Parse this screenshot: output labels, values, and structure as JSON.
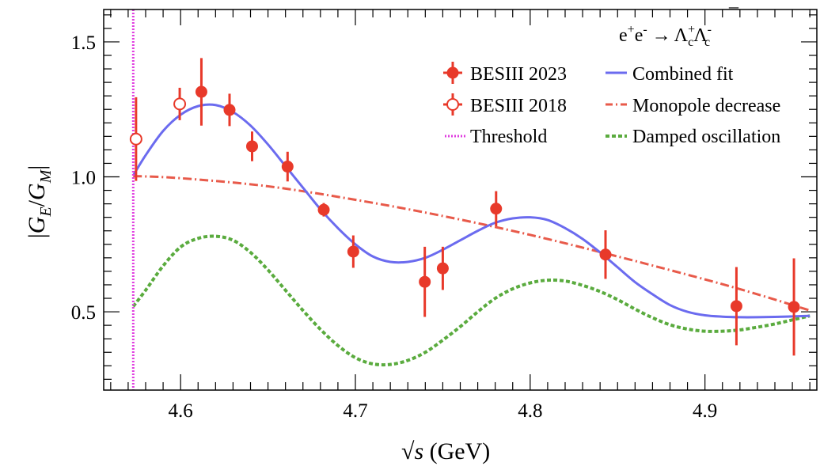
{
  "chart_data": {
    "type": "scatter",
    "title": "",
    "process": {
      "prefix": "e",
      "plus": "+",
      "e2": "e",
      "minus": "-",
      "arrow": "→",
      "lambda": "Λ",
      "sub_c": "c",
      "bar": "¯"
    },
    "xlabel": {
      "sqrt": "√",
      "s": "s",
      "rest": " (GeV)"
    },
    "ylabel": {
      "bar": "|",
      "G": "G",
      "sub_E": "E",
      "slash": "/",
      "sub_M": "M"
    },
    "xlim": [
      4.556,
      4.964
    ],
    "ylim": [
      0.21,
      1.62
    ],
    "xticks": [
      {
        "value": 4.6,
        "label": "4.6"
      },
      {
        "value": 4.7,
        "label": "4.7"
      },
      {
        "value": 4.8,
        "label": "4.8"
      },
      {
        "value": 4.9,
        "label": "4.9"
      }
    ],
    "yticks": [
      {
        "value": 0.5,
        "label": "0.5"
      },
      {
        "value": 1.0,
        "label": "1.0"
      },
      {
        "value": 1.5,
        "label": "1.5"
      }
    ],
    "threshold_x": 4.5729,
    "legend": [
      {
        "key": "besiii2023",
        "label": "BESIII 2023"
      },
      {
        "key": "combined",
        "label": "Combined fit"
      },
      {
        "key": "besiii2018",
        "label": "BESIII 2018"
      },
      {
        "key": "monopole",
        "label": "Monopole decrease"
      },
      {
        "key": "threshold",
        "label": "Threshold"
      },
      {
        "key": "damped",
        "label": "Damped oscillation"
      }
    ],
    "colors": {
      "data": "#e8392a",
      "combined": "#6b6bef",
      "monopole": "#e85a4a",
      "damped": "#5aab3e",
      "threshold": "#e040e0"
    },
    "series": [
      {
        "name": "BESIII 2023",
        "x": [
          4.6119,
          4.628,
          4.6409,
          4.6612,
          4.6819,
          4.6988,
          4.7397,
          4.75,
          4.7805,
          4.8431,
          4.918,
          4.9509
        ],
        "y": [
          1.315,
          1.248,
          1.113,
          1.038,
          0.878,
          0.723,
          0.611,
          0.661,
          0.882,
          0.712,
          0.521,
          0.518
        ],
        "yerr": [
          0.125,
          0.06,
          0.055,
          0.055,
          0.025,
          0.06,
          0.13,
          0.08,
          0.065,
          0.09,
          0.145,
          0.18
        ]
      },
      {
        "name": "BESIII 2018",
        "x": [
          4.5745,
          4.5995
        ],
        "y": [
          1.14,
          1.27
        ],
        "yerr": [
          0.155,
          0.06
        ]
      }
    ],
    "curves": {
      "combined": {
        "name": "Combined fit",
        "x": [
          4.5729,
          4.58,
          4.59,
          4.6,
          4.61,
          4.62,
          4.63,
          4.64,
          4.65,
          4.66,
          4.67,
          4.68,
          4.69,
          4.7,
          4.71,
          4.72,
          4.73,
          4.74,
          4.75,
          4.76,
          4.77,
          4.78,
          4.79,
          4.8,
          4.81,
          4.82,
          4.83,
          4.84,
          4.85,
          4.86,
          4.87,
          4.88,
          4.89,
          4.9,
          4.91,
          4.92,
          4.93,
          4.94,
          4.95,
          4.96
        ],
        "y": [
          1.005,
          1.08,
          1.17,
          1.23,
          1.262,
          1.266,
          1.24,
          1.19,
          1.12,
          1.04,
          0.96,
          0.88,
          0.81,
          0.75,
          0.705,
          0.685,
          0.685,
          0.7,
          0.73,
          0.765,
          0.8,
          0.83,
          0.846,
          0.85,
          0.84,
          0.81,
          0.77,
          0.72,
          0.665,
          0.61,
          0.565,
          0.525,
          0.5,
          0.487,
          0.482,
          0.48,
          0.48,
          0.481,
          0.483,
          0.485
        ]
      },
      "monopole": {
        "name": "Monopole decrease",
        "x": [
          4.5729,
          4.6,
          4.65,
          4.7,
          4.75,
          4.8,
          4.85,
          4.9,
          4.93,
          4.96
        ],
        "y": [
          1.003,
          0.995,
          0.965,
          0.915,
          0.855,
          0.785,
          0.705,
          0.62,
          0.565,
          0.505
        ]
      },
      "damped": {
        "name": "Damped oscillation",
        "x": [
          4.5729,
          4.58,
          4.59,
          4.6,
          4.61,
          4.62,
          4.63,
          4.64,
          4.65,
          4.66,
          4.67,
          4.68,
          4.69,
          4.7,
          4.71,
          4.72,
          4.73,
          4.74,
          4.75,
          4.76,
          4.77,
          4.78,
          4.79,
          4.8,
          4.81,
          4.82,
          4.83,
          4.84,
          4.85,
          4.86,
          4.87,
          4.88,
          4.89,
          4.9,
          4.91,
          4.92,
          4.93,
          4.94,
          4.95,
          4.96
        ],
        "y": [
          0.52,
          0.58,
          0.67,
          0.74,
          0.772,
          0.78,
          0.765,
          0.72,
          0.655,
          0.58,
          0.505,
          0.435,
          0.375,
          0.33,
          0.307,
          0.305,
          0.32,
          0.35,
          0.395,
          0.445,
          0.5,
          0.55,
          0.585,
          0.607,
          0.617,
          0.614,
          0.598,
          0.575,
          0.545,
          0.51,
          0.478,
          0.452,
          0.436,
          0.428,
          0.428,
          0.433,
          0.443,
          0.455,
          0.47,
          0.485
        ]
      }
    }
  }
}
